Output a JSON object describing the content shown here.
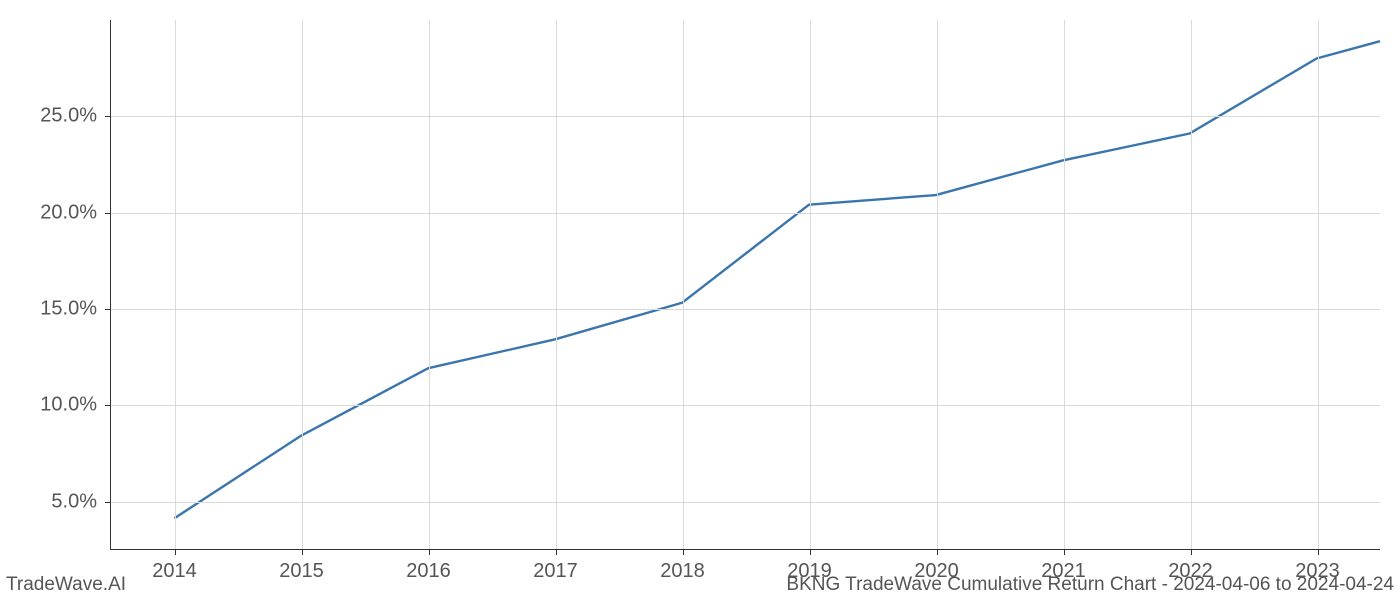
{
  "chart": {
    "type": "line",
    "background_color": "#ffffff",
    "grid_color": "#d9d9d9",
    "axis_color": "#333333",
    "tick_label_color": "#555555",
    "tick_label_fontsize": 20,
    "line_color": "#3a75ad",
    "line_width": 2.4,
    "x": {
      "ticks": [
        2014,
        2015,
        2016,
        2017,
        2018,
        2019,
        2020,
        2021,
        2022,
        2023
      ],
      "labels": [
        "2014",
        "2015",
        "2016",
        "2017",
        "2018",
        "2019",
        "2020",
        "2021",
        "2022",
        "2023"
      ],
      "min": 2013.5,
      "max": 2023.5
    },
    "y": {
      "ticks": [
        5,
        10,
        15,
        20,
        25
      ],
      "labels": [
        "5.0%",
        "10.0%",
        "15.0%",
        "20.0%",
        "25.0%"
      ],
      "min": 2.5,
      "max": 30.0
    },
    "series": {
      "x": [
        2014,
        2015,
        2016,
        2017,
        2018,
        2019,
        2020,
        2021,
        2022,
        2023,
        2023.5
      ],
      "y": [
        4.1,
        8.4,
        11.9,
        13.4,
        15.3,
        20.4,
        20.9,
        22.7,
        24.1,
        28.0,
        28.9
      ]
    }
  },
  "footer": {
    "left": "TradeWave.AI",
    "right": "BKNG TradeWave Cumulative Return Chart - 2024-04-06 to 2024-04-24"
  }
}
